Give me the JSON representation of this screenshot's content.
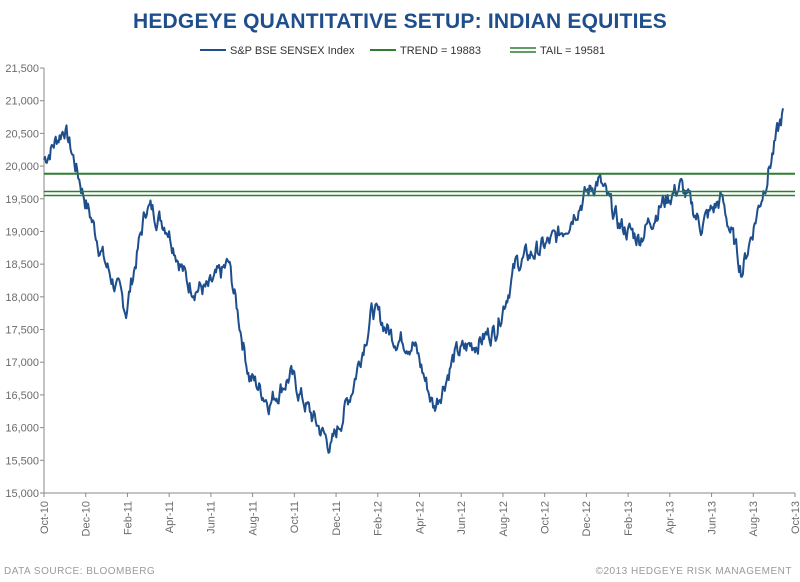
{
  "chart_data": {
    "type": "line",
    "title": "HEDGEYE QUANTITATIVE SETUP: INDIAN EQUITIES",
    "xlabel": "",
    "ylabel": "",
    "ylim": [
      15000,
      21500
    ],
    "y_ticks": [
      "15,000",
      "15,500",
      "16,000",
      "16,500",
      "17,000",
      "17,500",
      "18,000",
      "18,500",
      "19,000",
      "19,500",
      "20,000",
      "20,500",
      "21,000",
      "21,500"
    ],
    "x_ticks": [
      "Oct-10",
      "Dec-10",
      "Feb-11",
      "Apr-11",
      "Jun-11",
      "Aug-11",
      "Oct-11",
      "Dec-11",
      "Feb-12",
      "Apr-12",
      "Jun-12",
      "Aug-12",
      "Oct-12",
      "Dec-12",
      "Feb-13",
      "Apr-13",
      "Jun-13",
      "Aug-13",
      "Oct-13"
    ],
    "x_start": "Oct-10",
    "x_end": "Oct-13",
    "legend_position": "top",
    "grid": false,
    "series": [
      {
        "name": "S&P BSE SENSEX Index",
        "color": "#1f4e8c",
        "x": [
          "Oct-10",
          "Nov-10",
          "Dec-10",
          "Jan-11",
          "Feb-11",
          "Mar-11",
          "Apr-11",
          "May-11",
          "Jun-11",
          "Jul-11",
          "Aug-11",
          "Sep-11",
          "Oct-11",
          "Nov-11",
          "Dec-11",
          "Jan-12",
          "Feb-12",
          "Mar-12",
          "Apr-12",
          "May-12",
          "Jun-12",
          "Jul-12",
          "Aug-12",
          "Sep-12",
          "Oct-12",
          "Nov-12",
          "Dec-12",
          "Jan-13",
          "Feb-13",
          "Mar-13",
          "Apr-13",
          "May-13",
          "Jun-13",
          "Jul-13",
          "Aug-13",
          "Sep-13",
          "Oct-13"
        ],
        "values": [
          20100,
          20600,
          19500,
          18500,
          17800,
          19400,
          19100,
          18200,
          18100,
          18500,
          16800,
          16400,
          16800,
          16200,
          15700,
          16600,
          17800,
          17400,
          17300,
          16300,
          17100,
          17300,
          17500,
          18500,
          18700,
          18900,
          19400,
          19800,
          19100,
          18900,
          19400,
          19700,
          19100,
          19500,
          18400,
          19600,
          20800
        ]
      },
      {
        "name": "TREND = 19883",
        "color": "#2e7d32",
        "values": [
          19883
        ]
      },
      {
        "name": "TAIL = 19581",
        "color": "#2e7d32",
        "values": [
          19581
        ]
      }
    ]
  },
  "footer": {
    "left": "DATA SOURCE: BLOOMBERG",
    "right": "©2013 HEDGEYE RISK MANAGEMENT"
  }
}
